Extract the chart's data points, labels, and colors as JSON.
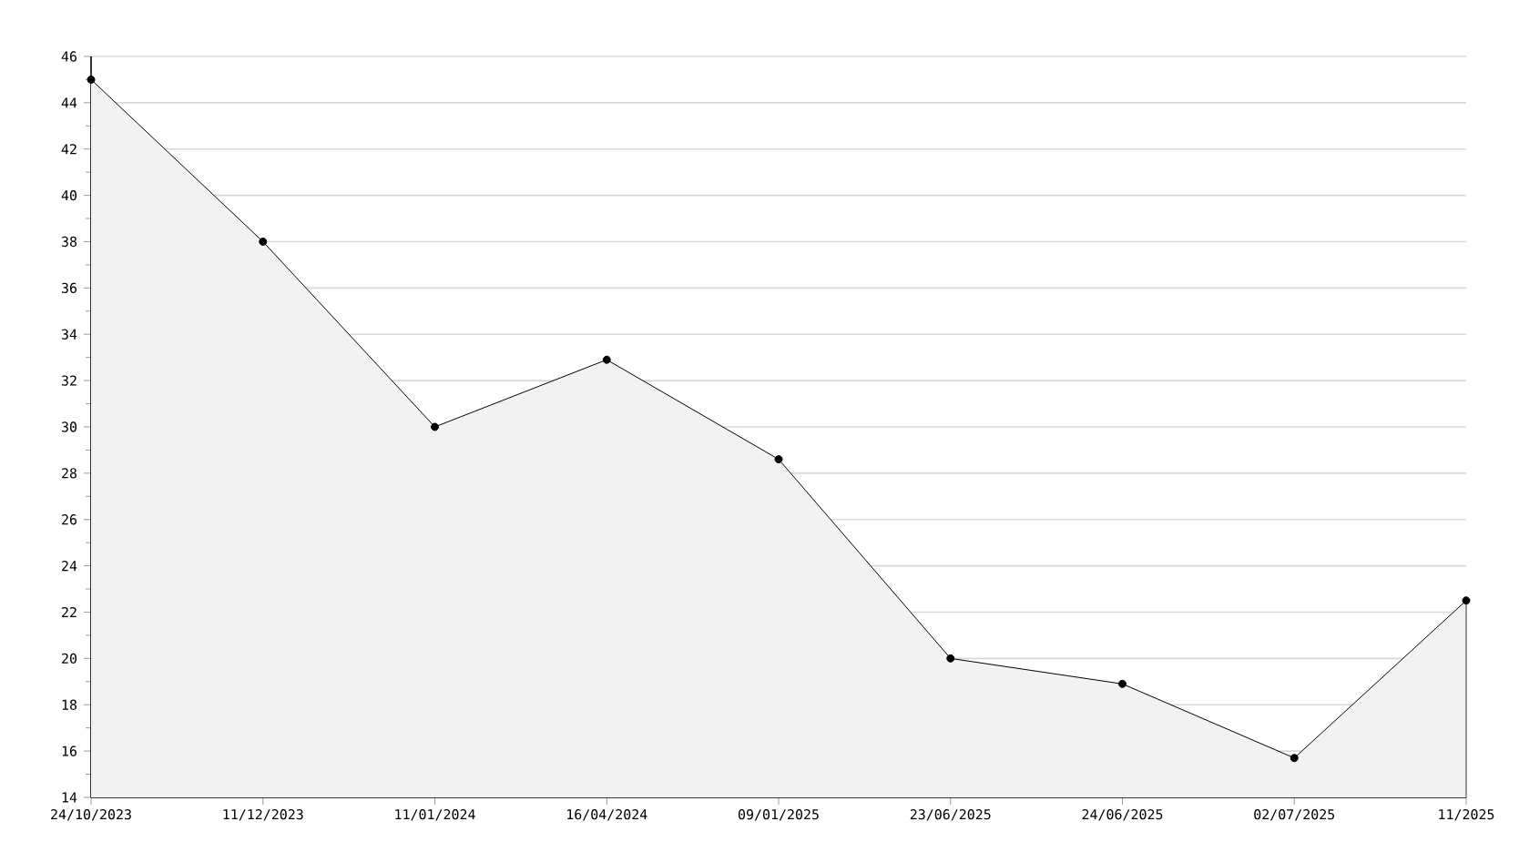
{
  "chart_data": {
    "type": "area",
    "categories": [
      "24/10/2023",
      "11/12/2023",
      "11/01/2024",
      "16/04/2024",
      "09/01/2025",
      "23/06/2025",
      "24/06/2025",
      "02/07/2025",
      "11/2025"
    ],
    "series": [
      {
        "color": "#000000",
        "values": [
          45,
          38,
          30,
          32.9,
          28.6,
          20,
          18.9,
          15.7,
          22.5
        ]
      }
    ],
    "ylim": [
      14,
      46
    ],
    "yticks": [
      14,
      16,
      18,
      20,
      22,
      24,
      26,
      28,
      30,
      32,
      34,
      36,
      38,
      40,
      42,
      44,
      46
    ],
    "grid": "y",
    "marker": "circle",
    "line_style": "solid"
  }
}
